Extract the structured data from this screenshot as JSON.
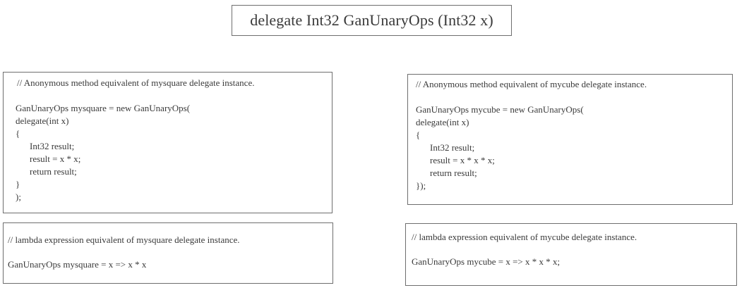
{
  "title": "delegate Int32 GanUnaryOps (Int32 x)",
  "anon_square": {
    "comment": "// Anonymous method equivalent of mysquare delegate instance.",
    "lines": [
      "GanUnaryOps mysquare = new GanUnaryOps(",
      "delegate(int x)",
      "{",
      "Int32 result;",
      "result = x * x;",
      "return result;",
      "}",
      ");"
    ]
  },
  "anon_cube": {
    "comment": "// Anonymous method equivalent of mycube delegate instance.",
    "lines": [
      "GanUnaryOps mycube = new GanUnaryOps(",
      "delegate(int x)",
      "{",
      "Int32 result;",
      "result = x * x * x;",
      "return result;",
      "});"
    ]
  },
  "lambda_square": {
    "comment": "// lambda expression equivalent of mysquare delegate instance.",
    "code": "GanUnaryOps mysquare = x => x * x"
  },
  "lambda_cube": {
    "comment": "// lambda expression equivalent of mycube delegate instance.",
    "code": "GanUnaryOps mycube = x => x * x * x;"
  }
}
